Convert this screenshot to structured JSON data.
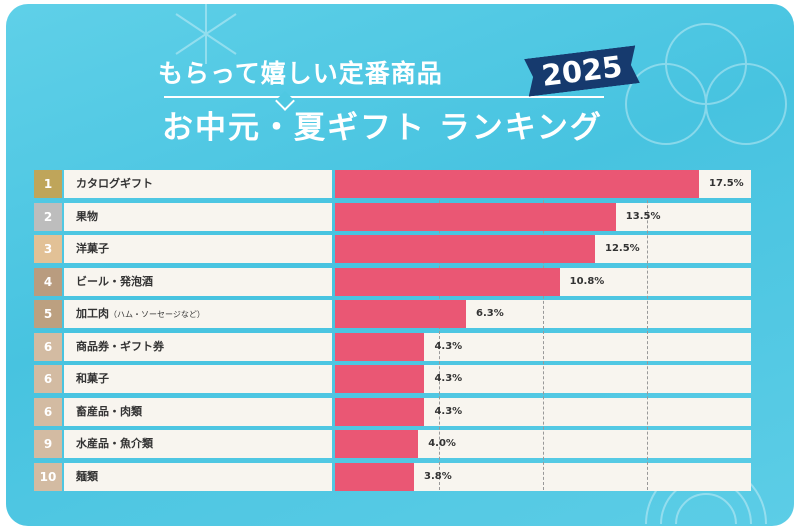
{
  "header": {
    "subtitle": "もらって嬉しい定番商品",
    "title": "お中元・夏ギフト ランキング",
    "year": "2025"
  },
  "chart_data": {
    "type": "bar",
    "orientation": "horizontal",
    "title": "お中元・夏ギフト ランキング",
    "xlabel": "",
    "ylabel": "",
    "xlim": [
      0,
      20
    ],
    "grid": true,
    "ranks": [
      "1",
      "2",
      "3",
      "4",
      "5",
      "6",
      "6",
      "6",
      "9",
      "10"
    ],
    "categories": [
      "カタログギフト",
      "果物",
      "洋菓子",
      "ビール・発泡酒",
      "加工肉",
      "商品券・ギフト券",
      "和菓子",
      "畜産品・肉類",
      "水産品・魚介類",
      "麺類"
    ],
    "category_notes": [
      "",
      "",
      "",
      "",
      "（ハム・ソーセージなど）",
      "",
      "",
      "",
      "",
      ""
    ],
    "values": [
      17.5,
      13.5,
      12.5,
      10.8,
      6.3,
      4.3,
      4.3,
      4.3,
      4.0,
      3.8
    ],
    "value_labels": [
      "17.5%",
      "13.5%",
      "12.5%",
      "10.8%",
      "6.3%",
      "4.3%",
      "4.3%",
      "4.3%",
      "4.0%",
      "3.8%"
    ],
    "rank_colors": [
      "#bfa55a",
      "#bdbdbd",
      "#e2c196",
      "#b99c7f",
      "#bca080",
      "#d3bba2",
      "#d3bba2",
      "#d3bba2",
      "#d3bba2",
      "#d3bba2"
    ],
    "bar_color": "#ea5774"
  }
}
